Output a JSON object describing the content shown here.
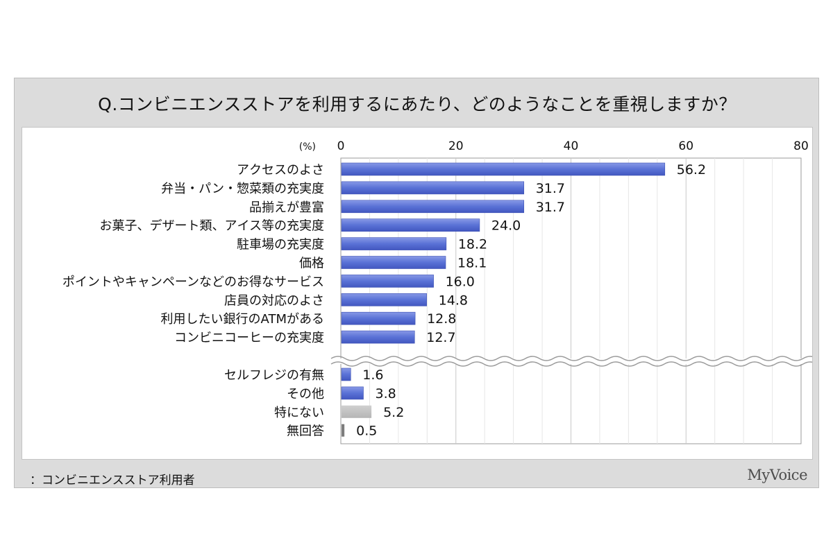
{
  "title": "Q.コンビニエンスストアを利用するにあたり、どのようなことを重視しますか？",
  "footnote": "：コンビニエンスストア利用者",
  "logo": "MyVoice",
  "colors": {
    "bar": "#5a72d6",
    "bar_gray": "#b5b5b5",
    "bar_dark": "#7d7d7d",
    "frame": "#dcdcdc"
  },
  "chart_data": {
    "type": "bar",
    "orientation": "horizontal",
    "unit_label": "(%)",
    "xlim": [
      0,
      80
    ],
    "ticks": [
      0,
      20,
      40,
      60,
      80
    ],
    "grid": true,
    "axis_break_after_index": 9,
    "categories": [
      "アクセスのよさ",
      "弁当・パン・惣菜類の充実度",
      "品揃えが豊富",
      "お菓子、デザート類、アイス等の充実度",
      "駐車場の充実度",
      "価格",
      "ポイントやキャンペーンなどのお得なサービス",
      "店員の対応のよさ",
      "利用したい銀行のATMがある",
      "コンビニコーヒーの充実度",
      "セルフレジの有無",
      "その他",
      "特にない",
      "無回答"
    ],
    "values": [
      56.2,
      31.7,
      31.7,
      24.0,
      18.2,
      18.1,
      16.0,
      14.8,
      12.8,
      12.7,
      1.6,
      3.8,
      5.2,
      0.5
    ],
    "value_labels": [
      "56.2",
      "31.7",
      "31.7",
      "24.0",
      "18.2",
      "18.1",
      "16.0",
      "14.8",
      "12.8",
      "12.7",
      "1.6",
      "3.8",
      "5.2",
      "0.5"
    ],
    "bar_styles": [
      "blue",
      "blue",
      "blue",
      "blue",
      "blue",
      "blue",
      "blue",
      "blue",
      "blue",
      "blue",
      "blue",
      "blue",
      "gray",
      "dark"
    ]
  }
}
